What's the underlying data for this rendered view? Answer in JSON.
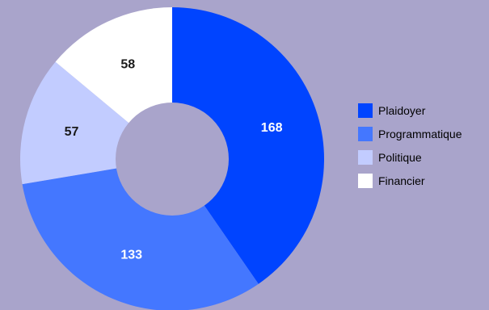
{
  "chart_data": {
    "type": "pie",
    "donut": true,
    "categories": [
      "Plaidoyer",
      "Programmatique",
      "Politique",
      "Financier"
    ],
    "values": [
      168,
      133,
      57,
      58
    ],
    "data_labels": [
      "168",
      "133",
      "57",
      "58"
    ],
    "colors": [
      "#0044ff",
      "#4477ff",
      "#c2ccff",
      "#ffffff"
    ],
    "label_colors": [
      "#ffffff",
      "#ffffff",
      "#1a1a1a",
      "#1a1a1a"
    ],
    "start_angle_deg": 0,
    "direction": "clockwise",
    "legend_position": "right"
  },
  "legend": {
    "items": [
      {
        "label": "Plaidoyer",
        "color": "#0044ff"
      },
      {
        "label": "Programmatique",
        "color": "#4477ff"
      },
      {
        "label": "Politique",
        "color": "#c2ccff"
      },
      {
        "label": "Financier",
        "color": "#ffffff"
      }
    ]
  },
  "colors": {
    "background": "#a9a4cb",
    "hole": "#a9a4cb"
  }
}
